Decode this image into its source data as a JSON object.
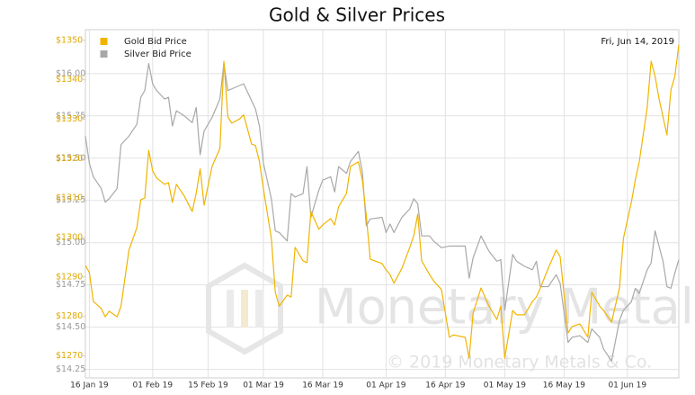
{
  "chart_data": {
    "type": "line",
    "title": "Gold & Silver Prices",
    "date_label": "Fri, Jun 14, 2019",
    "watermark": {
      "brand": "Monetary Metals",
      "copyright": "© 2019 Monetary Metals & Co."
    },
    "x": [
      "2019-01-15",
      "2019-01-16",
      "2019-01-17",
      "2019-01-19",
      "2019-01-20",
      "2019-01-21",
      "2019-01-23",
      "2019-01-24",
      "2019-01-26",
      "2019-01-28",
      "2019-01-29",
      "2019-01-30",
      "2019-01-31",
      "2019-02-01",
      "2019-02-02",
      "2019-02-04",
      "2019-02-05",
      "2019-02-06",
      "2019-02-07",
      "2019-02-09",
      "2019-02-11",
      "2019-02-12",
      "2019-02-13",
      "2019-02-14",
      "2019-02-16",
      "2019-02-18",
      "2019-02-19",
      "2019-02-20",
      "2019-02-21",
      "2019-02-23",
      "2019-02-24",
      "2019-02-26",
      "2019-02-27",
      "2019-02-28",
      "2019-03-01",
      "2019-03-03",
      "2019-03-04",
      "2019-03-05",
      "2019-03-07",
      "2019-03-08",
      "2019-03-09",
      "2019-03-11",
      "2019-03-12",
      "2019-03-13",
      "2019-03-15",
      "2019-03-16",
      "2019-03-18",
      "2019-03-19",
      "2019-03-20",
      "2019-03-22",
      "2019-03-23",
      "2019-03-25",
      "2019-03-26",
      "2019-03-27",
      "2019-03-28",
      "2019-03-31",
      "2019-04-01",
      "2019-04-02",
      "2019-04-03",
      "2019-04-05",
      "2019-04-07",
      "2019-04-08",
      "2019-04-09",
      "2019-04-10",
      "2019-04-12",
      "2019-04-13",
      "2019-04-15",
      "2019-04-17",
      "2019-04-18",
      "2019-04-21",
      "2019-04-22",
      "2019-04-23",
      "2019-04-25",
      "2019-04-27",
      "2019-04-29",
      "2019-04-30",
      "2019-05-01",
      "2019-05-03",
      "2019-05-04",
      "2019-05-06",
      "2019-05-08",
      "2019-05-09",
      "2019-05-10",
      "2019-05-12",
      "2019-05-14",
      "2019-05-15",
      "2019-05-17",
      "2019-05-18",
      "2019-05-20",
      "2019-05-22",
      "2019-05-23",
      "2019-05-25",
      "2019-05-26",
      "2019-05-28",
      "2019-05-30",
      "2019-05-31",
      "2019-06-02",
      "2019-06-03",
      "2019-06-04",
      "2019-06-06",
      "2019-06-07",
      "2019-06-08",
      "2019-06-09",
      "2019-06-10",
      "2019-06-11",
      "2019-06-12",
      "2019-06-13",
      "2019-06-14"
    ],
    "xlim": [
      "2019-01-15",
      "2019-06-14"
    ],
    "xticks": [
      {
        "value": "2019-01-16",
        "label": "16 Jan 19"
      },
      {
        "value": "2019-02-01",
        "label": "01 Feb 19"
      },
      {
        "value": "2019-02-15",
        "label": "15 Feb 19"
      },
      {
        "value": "2019-03-01",
        "label": "01 Mar 19"
      },
      {
        "value": "2019-03-16",
        "label": "16 Mar 19"
      },
      {
        "value": "2019-04-01",
        "label": "01 Apr 19"
      },
      {
        "value": "2019-04-16",
        "label": "16 Apr 19"
      },
      {
        "value": "2019-05-01",
        "label": "01 May 19"
      },
      {
        "value": "2019-05-16",
        "label": "16 May 19"
      },
      {
        "value": "2019-06-01",
        "label": "01 Jun 19"
      }
    ],
    "ylim": [
      14.2,
      16.26
    ],
    "yticks": [
      {
        "value": 14.25,
        "label": "$14.25"
      },
      {
        "value": 14.5,
        "label": "$14.50"
      },
      {
        "value": 14.75,
        "label": "$14.75"
      },
      {
        "value": 15,
        "label": "$15.00"
      },
      {
        "value": 15.25,
        "label": "$15.25"
      },
      {
        "value": 15.5,
        "label": "$15.50"
      },
      {
        "value": 15.75,
        "label": "$15.75"
      },
      {
        "value": 16,
        "label": "$16.00"
      }
    ],
    "y2lim": [
      1264.4,
      1352.7
    ],
    "y2ticks": [
      {
        "value": 1270,
        "label": "$1270"
      },
      {
        "value": 1280,
        "label": "$1280"
      },
      {
        "value": 1290,
        "label": "$1290"
      },
      {
        "value": 1300,
        "label": "$1300"
      },
      {
        "value": 1310,
        "label": "$1310"
      },
      {
        "value": 1320,
        "label": "$1320"
      },
      {
        "value": 1330,
        "label": "$1330"
      },
      {
        "value": 1340,
        "label": "$1340"
      },
      {
        "value": 1350,
        "label": "$1350"
      }
    ],
    "grid": true,
    "legend": "top-left",
    "series": [
      {
        "name": "Gold Bid Price",
        "color": "#f0b400",
        "axis": "y2",
        "tick_color": "#e0a800",
        "values": [
          1292.9,
          1291.1,
          1283.8,
          1282.0,
          1279.9,
          1281.3,
          1279.9,
          1282.6,
          1296.8,
          1302.5,
          1309.6,
          1310.0,
          1322.1,
          1316.9,
          1315.1,
          1313.5,
          1313.9,
          1308.9,
          1313.5,
          1310.5,
          1306.6,
          1311.2,
          1317.4,
          1308.2,
          1318.0,
          1322.6,
          1344.7,
          1330.6,
          1329.0,
          1330.1,
          1331.1,
          1323.7,
          1323.3,
          1319.2,
          1312.3,
          1299.8,
          1286.1,
          1282.6,
          1285.4,
          1284.9,
          1297.5,
          1294.1,
          1293.6,
          1306.6,
          1302.1,
          1303.2,
          1304.8,
          1303.2,
          1307.8,
          1311.2,
          1318.0,
          1319.2,
          1314.6,
          1305.5,
          1294.5,
          1293.4,
          1291.8,
          1290.6,
          1288.4,
          1292.2,
          1297.5,
          1300.5,
          1305.9,
          1294.1,
          1290.6,
          1289.0,
          1286.8,
          1274.7,
          1275.3,
          1274.7,
          1269.4,
          1280.8,
          1287.2,
          1282.6,
          1279.2,
          1282.6,
          1269.4,
          1281.5,
          1280.4,
          1280.4,
          1283.8,
          1284.9,
          1287.2,
          1292.2,
          1296.8,
          1295.2,
          1275.8,
          1277.4,
          1278.1,
          1274.7,
          1286.1,
          1282.6,
          1281.5,
          1278.5,
          1287.2,
          1299.8,
          1308.9,
          1314.6,
          1319.2,
          1332.9,
          1344.7,
          1340.9,
          1335.2,
          1330.6,
          1326.0,
          1337.4,
          1340.9,
          1348.9
        ]
      },
      {
        "name": "Silver Bid Price",
        "color": "#a8a8a8",
        "tick_color": "#999999",
        "values": [
          15.63,
          15.47,
          15.39,
          15.32,
          15.24,
          15.26,
          15.32,
          15.58,
          15.63,
          15.7,
          15.86,
          15.9,
          16.06,
          15.94,
          15.9,
          15.85,
          15.86,
          15.69,
          15.78,
          15.75,
          15.71,
          15.8,
          15.52,
          15.66,
          15.74,
          15.85,
          16.06,
          15.9,
          15.91,
          15.93,
          15.94,
          15.84,
          15.79,
          15.69,
          15.47,
          15.26,
          15.07,
          15.06,
          15.01,
          15.29,
          15.27,
          15.29,
          15.45,
          15.15,
          15.31,
          15.37,
          15.39,
          15.3,
          15.45,
          15.41,
          15.48,
          15.54,
          15.42,
          15.1,
          15.14,
          15.15,
          15.06,
          15.11,
          15.06,
          15.15,
          15.2,
          15.26,
          15.23,
          15.04,
          15.04,
          15.01,
          14.97,
          14.98,
          14.98,
          14.98,
          14.79,
          14.91,
          15.04,
          14.95,
          14.89,
          14.9,
          14.6,
          14.93,
          14.89,
          14.86,
          14.84,
          14.89,
          14.74,
          14.74,
          14.81,
          14.76,
          14.41,
          14.44,
          14.45,
          14.41,
          14.49,
          14.44,
          14.37,
          14.3,
          14.54,
          14.6,
          14.65,
          14.73,
          14.7,
          14.84,
          14.88,
          15.07,
          14.98,
          14.89,
          14.74,
          14.73,
          14.82,
          14.9
        ]
      }
    ]
  }
}
